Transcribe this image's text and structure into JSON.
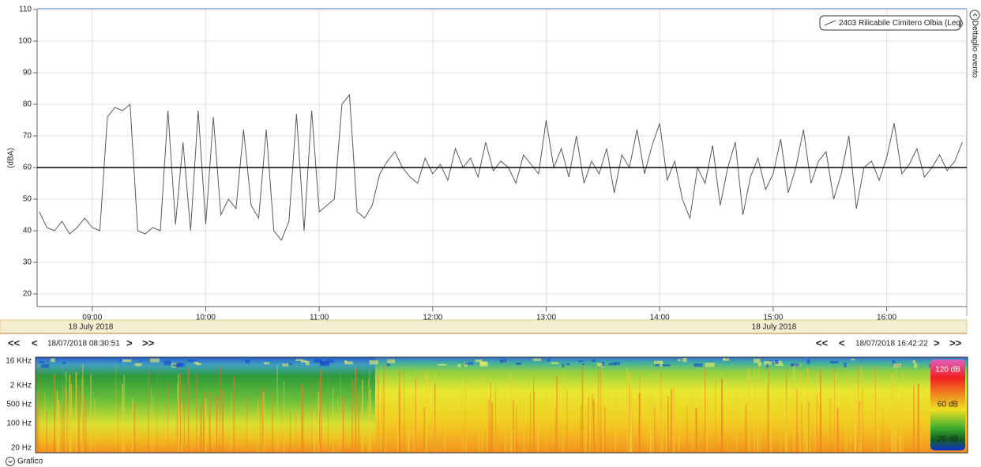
{
  "chart_data": {
    "type": "line",
    "y_label": "(dBA)",
    "x": [
      "08:32",
      "08:36",
      "08:40",
      "08:44",
      "08:48",
      "08:52",
      "08:56",
      "09:00",
      "09:04",
      "09:08",
      "09:12",
      "09:16",
      "09:20",
      "09:24",
      "09:28",
      "09:32",
      "09:36",
      "09:40",
      "09:44",
      "09:48",
      "09:52",
      "09:56",
      "10:00",
      "10:04",
      "10:08",
      "10:12",
      "10:16",
      "10:20",
      "10:24",
      "10:28",
      "10:32",
      "10:36",
      "10:40",
      "10:44",
      "10:48",
      "10:52",
      "10:56",
      "11:00",
      "11:04",
      "11:08",
      "11:12",
      "11:16",
      "11:20",
      "11:24",
      "11:28",
      "11:32",
      "11:36",
      "11:40",
      "11:44",
      "11:48",
      "11:52",
      "11:56",
      "12:00",
      "12:04",
      "12:08",
      "12:12",
      "12:16",
      "12:20",
      "12:24",
      "12:28",
      "12:32",
      "12:36",
      "12:40",
      "12:44",
      "12:48",
      "12:52",
      "12:56",
      "13:00",
      "13:04",
      "13:08",
      "13:12",
      "13:16",
      "13:20",
      "13:24",
      "13:28",
      "13:32",
      "13:36",
      "13:40",
      "13:44",
      "13:48",
      "13:52",
      "13:56",
      "14:00",
      "14:04",
      "14:08",
      "14:12",
      "14:16",
      "14:20",
      "14:24",
      "14:28",
      "14:32",
      "14:36",
      "14:40",
      "14:44",
      "14:48",
      "14:52",
      "14:56",
      "15:00",
      "15:04",
      "15:08",
      "15:12",
      "15:16",
      "15:20",
      "15:24",
      "15:28",
      "15:32",
      "15:36",
      "15:40",
      "15:44",
      "15:48",
      "15:52",
      "15:56",
      "16:00",
      "16:04",
      "16:08",
      "16:12",
      "16:16",
      "16:20",
      "16:24",
      "16:28",
      "16:32",
      "16:36",
      "16:40"
    ],
    "series": [
      {
        "name": "2403 Rilicabile Cimitero Olbia (Leq)",
        "color": "#5a5a5a",
        "values": [
          46,
          41,
          40,
          43,
          39,
          41,
          44,
          41,
          40,
          76,
          79,
          78,
          80,
          40,
          39,
          41,
          40,
          78,
          42,
          68,
          40,
          78,
          42,
          76,
          45,
          50,
          47,
          72,
          48,
          44,
          72,
          40,
          37,
          43,
          77,
          40,
          78,
          46,
          48,
          50,
          80,
          83,
          46,
          44,
          48,
          58,
          62,
          65,
          60,
          57,
          55,
          63,
          58,
          61,
          56,
          66,
          60,
          63,
          57,
          68,
          59,
          62,
          60,
          55,
          64,
          61,
          58,
          75,
          60,
          66,
          57,
          70,
          55,
          62,
          58,
          66,
          52,
          64,
          60,
          72,
          58,
          67,
          74,
          56,
          62,
          50,
          44,
          60,
          55,
          67,
          48,
          60,
          68,
          45,
          57,
          63,
          53,
          58,
          69,
          52,
          60,
          72,
          55,
          62,
          65,
          50,
          58,
          70,
          47,
          60,
          62,
          56,
          63,
          74,
          58,
          61,
          66,
          57,
          60,
          64,
          59,
          62,
          68
        ]
      }
    ],
    "threshold": 60,
    "xlim": [
      "08:30:51",
      "16:42:22"
    ],
    "xticks": [
      "09:00",
      "10:00",
      "11:00",
      "12:00",
      "13:00",
      "14:00",
      "15:00",
      "16:00"
    ],
    "ylim": [
      16,
      110
    ],
    "yticks": [
      20,
      30,
      40,
      50,
      60,
      70,
      80,
      90,
      100,
      110
    ],
    "grid": true,
    "legend": "top-right",
    "date_labels": [
      "18 July 2018",
      "18 July 2018"
    ]
  },
  "navigation": {
    "left": {
      "first": "<<",
      "prev": "<",
      "time": "18/07/2018 08:30:51",
      "next": ">",
      "last": ">>"
    },
    "right": {
      "first": "<<",
      "prev": "<",
      "time": "18/07/2018 16:42:22",
      "next": ">",
      "last": ">>"
    }
  },
  "spectrogram": {
    "y_labels": [
      "16 KHz",
      "2 KHz",
      "500 Hz",
      "100 Hz",
      "20 Hz"
    ],
    "colorbar_labels": [
      "120 dB",
      "60 dB",
      "20 dB"
    ]
  },
  "side_panel": {
    "label": "Dettaglio evento"
  },
  "footer": {
    "toggle": "Grafico"
  }
}
